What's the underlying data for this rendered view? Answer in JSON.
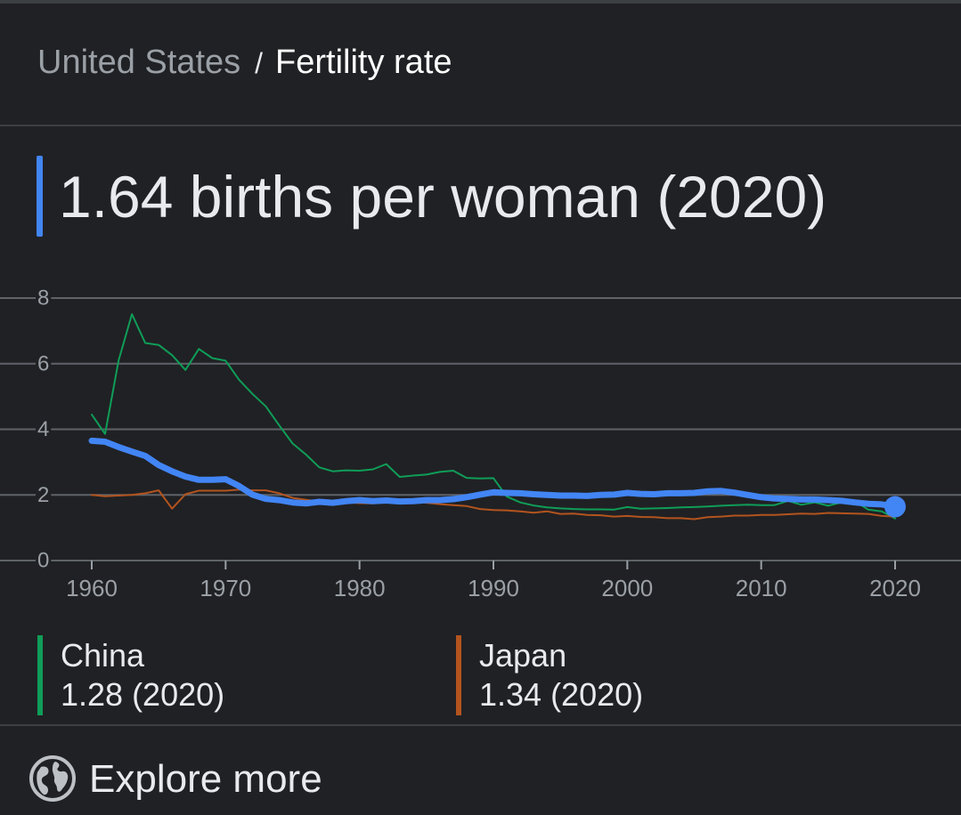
{
  "breadcrumb": {
    "parent": "United States",
    "separator": "/",
    "current": "Fertility rate"
  },
  "headline": "1.64 births per woman (2020)",
  "legend": [
    {
      "name": "China",
      "value": "1.28 (2020)",
      "color": "#0f9d58"
    },
    {
      "name": "Japan",
      "value": "1.34 (2020)",
      "color": "#b3541e"
    }
  ],
  "explore_label": "Explore more",
  "icons": {
    "globe": "globe-icon"
  },
  "chart_data": {
    "type": "line",
    "title": "Fertility rate",
    "xlabel": "",
    "ylabel": "births per woman",
    "xlim": [
      1960,
      2020
    ],
    "ylim": [
      0,
      8
    ],
    "xticks": [
      1960,
      1970,
      1980,
      1990,
      2000,
      2010,
      2020
    ],
    "yticks": [
      0,
      2,
      4,
      6,
      8
    ],
    "grid": true,
    "x": [
      1960,
      1961,
      1962,
      1963,
      1964,
      1965,
      1966,
      1967,
      1968,
      1969,
      1970,
      1971,
      1972,
      1973,
      1974,
      1975,
      1976,
      1977,
      1978,
      1979,
      1980,
      1981,
      1982,
      1983,
      1984,
      1985,
      1986,
      1987,
      1988,
      1989,
      1990,
      1991,
      1992,
      1993,
      1994,
      1995,
      1996,
      1997,
      1998,
      1999,
      2000,
      2001,
      2002,
      2003,
      2004,
      2005,
      2006,
      2007,
      2008,
      2009,
      2010,
      2011,
      2012,
      2013,
      2014,
      2015,
      2016,
      2017,
      2018,
      2019,
      2020
    ],
    "series": [
      {
        "name": "United States",
        "color": "#4285f4",
        "width": 7,
        "values": [
          3.65,
          3.62,
          3.46,
          3.32,
          3.19,
          2.91,
          2.72,
          2.56,
          2.46,
          2.46,
          2.48,
          2.27,
          2.01,
          1.88,
          1.84,
          1.77,
          1.74,
          1.79,
          1.76,
          1.81,
          1.84,
          1.81,
          1.83,
          1.8,
          1.81,
          1.84,
          1.84,
          1.87,
          1.93,
          2.01,
          2.08,
          2.06,
          2.05,
          2.02,
          2.0,
          1.98,
          1.98,
          1.97,
          2.0,
          2.01,
          2.06,
          2.03,
          2.02,
          2.05,
          2.05,
          2.06,
          2.11,
          2.12,
          2.07,
          2.0,
          1.93,
          1.89,
          1.88,
          1.86,
          1.86,
          1.84,
          1.82,
          1.77,
          1.73,
          1.71,
          1.64
        ]
      },
      {
        "name": "China",
        "color": "#0f9d58",
        "width": 2,
        "values": [
          4.45,
          3.86,
          6.09,
          7.51,
          6.63,
          6.57,
          6.26,
          5.81,
          6.45,
          6.17,
          6.09,
          5.51,
          5.08,
          4.7,
          4.12,
          3.57,
          3.23,
          2.84,
          2.72,
          2.75,
          2.74,
          2.78,
          2.94,
          2.55,
          2.59,
          2.62,
          2.7,
          2.74,
          2.52,
          2.5,
          2.51,
          1.95,
          1.77,
          1.68,
          1.62,
          1.59,
          1.57,
          1.56,
          1.56,
          1.55,
          1.63,
          1.58,
          1.59,
          1.6,
          1.62,
          1.63,
          1.65,
          1.67,
          1.69,
          1.7,
          1.69,
          1.69,
          1.82,
          1.7,
          1.77,
          1.67,
          1.77,
          1.81,
          1.55,
          1.5,
          1.28
        ]
      },
      {
        "name": "Japan",
        "color": "#b3541e",
        "width": 2,
        "values": [
          2.0,
          1.96,
          1.98,
          2.0,
          2.05,
          2.14,
          1.58,
          2.02,
          2.13,
          2.13,
          2.13,
          2.16,
          2.14,
          2.14,
          2.05,
          1.91,
          1.85,
          1.8,
          1.79,
          1.77,
          1.75,
          1.74,
          1.77,
          1.8,
          1.81,
          1.76,
          1.72,
          1.69,
          1.66,
          1.57,
          1.54,
          1.53,
          1.5,
          1.46,
          1.5,
          1.42,
          1.43,
          1.39,
          1.38,
          1.34,
          1.36,
          1.33,
          1.32,
          1.29,
          1.29,
          1.26,
          1.32,
          1.34,
          1.37,
          1.37,
          1.39,
          1.39,
          1.41,
          1.43,
          1.42,
          1.45,
          1.44,
          1.43,
          1.42,
          1.36,
          1.34
        ]
      }
    ]
  }
}
